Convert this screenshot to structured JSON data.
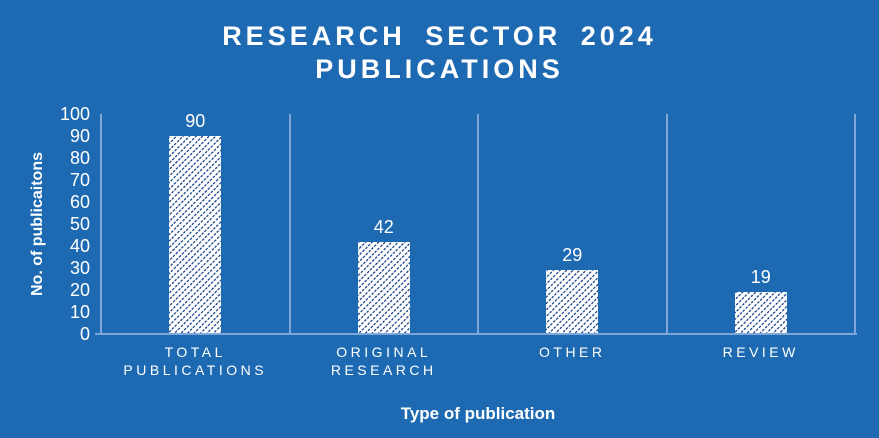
{
  "colors": {
    "background": "#1E6AB2",
    "grid_line": "#7FA6D9",
    "hatch_line": "#2E5697",
    "bar_fill": "#FFFFFF",
    "text": "#FFFFFF"
  },
  "chart_data": {
    "type": "bar",
    "title": "RESEARCH SECTOR 2024 PUBLICATIONS",
    "title_lines": [
      "RESEARCH SECTOR 2024",
      "PUBLICATIONS"
    ],
    "categories": [
      "TOTAL PUBLICATIONS",
      "ORIGINAL RESEARCH",
      "OTHER",
      "REVIEW"
    ],
    "values": [
      90,
      42,
      29,
      19
    ],
    "data_labels": [
      "90",
      "42",
      "29",
      "19"
    ],
    "xlabel": "Type of publication",
    "ylabel": "No. of publicaitons",
    "ylim": [
      0,
      100
    ],
    "ytick_step": 10,
    "ytick_labels": [
      "0",
      "10",
      "20",
      "30",
      "40",
      "50",
      "60",
      "70",
      "80",
      "90",
      "100"
    ],
    "grid": "vertical category separator lines only",
    "legend": "none",
    "bar_style": "white fill with blue upward diagonal hatch"
  }
}
